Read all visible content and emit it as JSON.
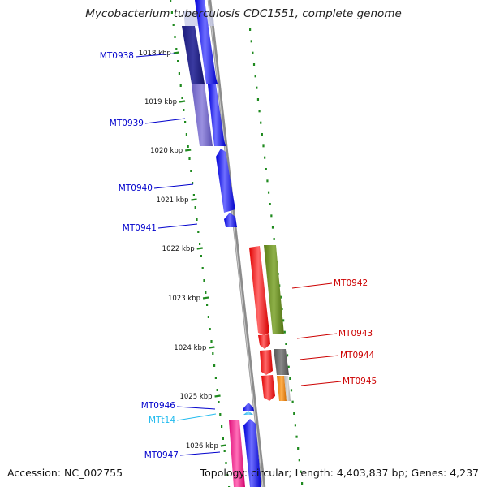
{
  "title": "Mycobacterium tuberculosis CDC1551, complete genome",
  "footer": {
    "accession": "Accession: NC_002755",
    "summary": "Topology: circular; Length: 4,403,837 bp; Genes: 4,237"
  },
  "ruler": {
    "labels": [
      "1018 kbp",
      "1019 kbp",
      "1020 kbp",
      "1021 kbp",
      "1022 kbp",
      "1023 kbp",
      "1024 kbp",
      "1025 kbp",
      "1026 kbp"
    ]
  },
  "genes": [
    {
      "id": "MT0938",
      "color": "#0000cc",
      "strand": "left"
    },
    {
      "id": "MT0939",
      "color": "#0000cc",
      "strand": "left"
    },
    {
      "id": "MT0940",
      "color": "#0000cc",
      "strand": "left"
    },
    {
      "id": "MT0941",
      "color": "#0000cc",
      "strand": "left"
    },
    {
      "id": "MT0942",
      "color": "#cc0000",
      "strand": "right"
    },
    {
      "id": "MT0943",
      "color": "#cc0000",
      "strand": "right"
    },
    {
      "id": "MT0944",
      "color": "#cc0000",
      "strand": "right"
    },
    {
      "id": "MT0945",
      "color": "#cc0000",
      "strand": "right"
    },
    {
      "id": "MT0946",
      "color": "#0000cc",
      "strand": "left"
    },
    {
      "id": "MTt14",
      "color": "#22bbee",
      "strand": "left"
    },
    {
      "id": "MT0947",
      "color": "#0000cc",
      "strand": "left"
    }
  ]
}
